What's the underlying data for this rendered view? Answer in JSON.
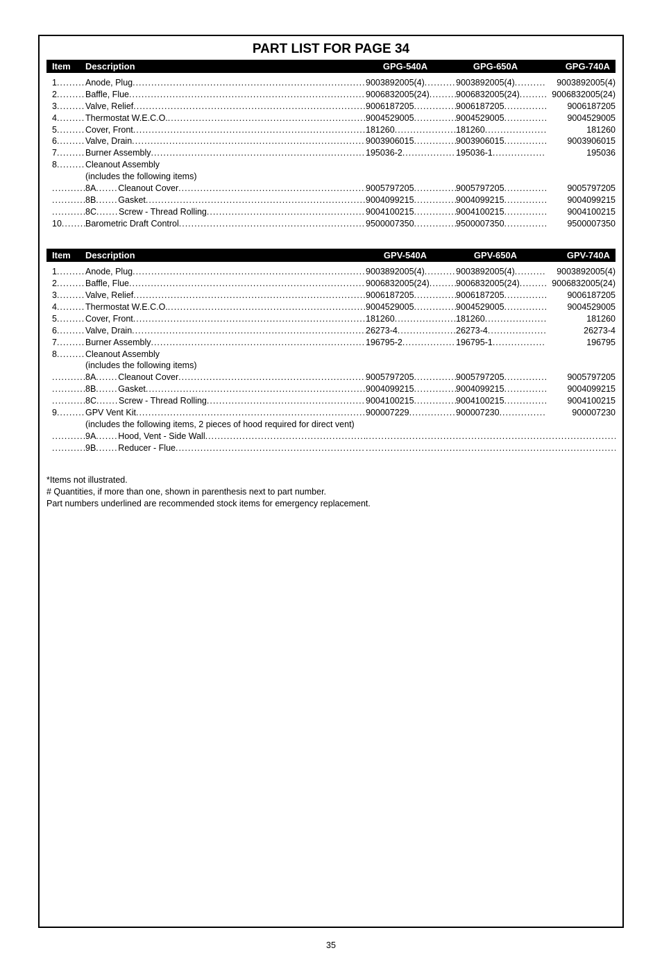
{
  "title": "PART LIST FOR PAGE 34",
  "pageNumber": "35",
  "tables": [
    {
      "header": {
        "item": "Item",
        "desc": "Description",
        "colA": "GPG-540A",
        "colB": "GPG-650A",
        "colC": "GPG-740A"
      },
      "rows": [
        {
          "item": "1",
          "desc": "Anode, Plug",
          "a": "9003892005(4)",
          "b": "9003892005(4)",
          "c": "9003892005(4)"
        },
        {
          "item": "2",
          "desc": "Baffle, Flue",
          "a": "9006832005(24)",
          "b": "9006832005(24)",
          "c": "9006832005(24)"
        },
        {
          "item": "3",
          "desc": "Valve, Relief",
          "a": "9006187205",
          "b": "9006187205",
          "c": "9006187205"
        },
        {
          "item": "4",
          "desc": "Thermostat W.E.C.O.",
          "a": "9004529005",
          "b": "9004529005",
          "c": "9004529005"
        },
        {
          "item": "5",
          "desc": "Cover, Front",
          "a": "181260",
          "b": "181260",
          "c": "181260"
        },
        {
          "item": "6",
          "desc": "Valve, Drain",
          "a": "9003906015",
          "b": "9003906015",
          "c": "9003906015"
        },
        {
          "item": "7",
          "desc": "Burner Assembly",
          "a": "195036-2",
          "b": "195036-1",
          "c": "195036"
        },
        {
          "item": "8",
          "desc": "Cleanout Assembly",
          "noVals": true
        },
        {
          "item": "",
          "desc": "(includes the following items)",
          "noVals": true,
          "noItemLeader": true
        },
        {
          "item": "",
          "subItem": "8A",
          "desc": "Cleanout Cover",
          "a": "9005797205",
          "b": "9005797205",
          "c": "9005797205"
        },
        {
          "item": "",
          "subItem": "8B",
          "desc": "Gasket",
          "a": "9004099215",
          "b": "9004099215",
          "c": "9004099215"
        },
        {
          "item": "",
          "subItem": "8C",
          "desc": "Screw - Thread Rolling",
          "a": "9004100215",
          "b": "9004100215",
          "c": "9004100215"
        },
        {
          "item": "10",
          "desc": "Barometric Draft Control",
          "a": "9500007350",
          "b": "9500007350",
          "c": "9500007350"
        }
      ]
    },
    {
      "header": {
        "item": "Item",
        "desc": "Description",
        "colA": "GPV-540A",
        "colB": "GPV-650A",
        "colC": "GPV-740A"
      },
      "rows": [
        {
          "item": "1",
          "desc": "Anode, Plug",
          "a": "9003892005(4)",
          "b": "9003892005(4)",
          "c": "9003892005(4)"
        },
        {
          "item": "2",
          "desc": "Baffle, Flue",
          "a": "9006832005(24)",
          "b": "9006832005(24)",
          "c": "9006832005(24)"
        },
        {
          "item": "3",
          "desc": "Valve, Relief",
          "a": "9006187205",
          "b": "9006187205",
          "c": "9006187205"
        },
        {
          "item": "4",
          "desc": "Thermostat W.E.C.O.",
          "a": "9004529005",
          "b": "9004529005",
          "c": "9004529005"
        },
        {
          "item": "5",
          "desc": "Cover, Front",
          "a": "181260",
          "b": "181260",
          "c": "181260"
        },
        {
          "item": "6",
          "desc": "Valve, Drain",
          "a": "26273-4",
          "b": "26273-4",
          "c": "26273-4"
        },
        {
          "item": "7",
          "desc": "Burner Assembly",
          "a": "196795-2",
          "b": "196795-1",
          "c": "196795"
        },
        {
          "item": "8",
          "desc": "Cleanout Assembly",
          "noVals": true
        },
        {
          "item": "",
          "desc": "(includes the following items)",
          "noVals": true,
          "noItemLeader": true
        },
        {
          "item": "",
          "subItem": "8A",
          "desc": "Cleanout Cover",
          "a": "9005797205",
          "b": "9005797205",
          "c": "9005797205"
        },
        {
          "item": "",
          "subItem": "8B",
          "desc": "Gasket",
          "a": "9004099215",
          "b": "9004099215",
          "c": "9004099215"
        },
        {
          "item": "",
          "subItem": "8C",
          "desc": "Screw - Thread Rolling",
          "a": "9004100215",
          "b": "9004100215",
          "c": "9004100215"
        },
        {
          "item": "9",
          "desc": "GPV Vent Kit",
          "a": "900007229",
          "b": "900007230",
          "c": "900007230"
        },
        {
          "item": "",
          "desc": "(includes the following items, 2 pieces of hood required for direct vent)",
          "noVals": true,
          "noItemLeader": true
        },
        {
          "item": "",
          "subItem": "9A",
          "desc": "Hood, Vent - Side Wall",
          "trailingLeaderOnly": true
        },
        {
          "item": "",
          "subItem": "9B",
          "desc": "Reducer - Flue",
          "trailingLeaderOnly": true
        }
      ]
    }
  ],
  "notes": [
    "*Items not illustrated.",
    "# Quantities, if more than one, shown in parenthesis next to part number.",
    "Part numbers underlined are recommended stock items for emergency replacement."
  ]
}
